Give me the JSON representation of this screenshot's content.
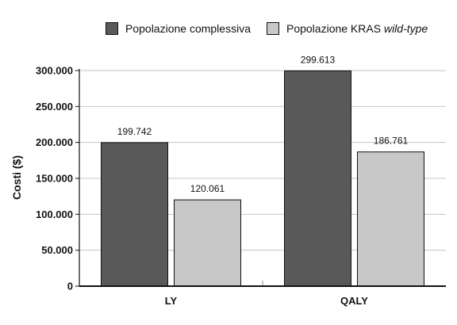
{
  "chart_data": {
    "type": "bar",
    "title": "",
    "xlabel": "",
    "ylabel": "Costi ($)",
    "categories": [
      "LY",
      "QALY"
    ],
    "ylim": [
      0,
      300000
    ],
    "yticks": [
      0,
      50000,
      100000,
      150000,
      200000,
      250000,
      300000
    ],
    "ytick_labels": [
      "0",
      "50.000",
      "100.000",
      "150.000",
      "200.000",
      "250.000",
      "300.000"
    ],
    "grid": true,
    "legend_position": "top-right",
    "series": [
      {
        "name": "Popolazione complessiva",
        "color": "#595959",
        "values": [
          199742,
          299613
        ],
        "labels": [
          "199.742",
          "299.613"
        ]
      },
      {
        "name": "Popolazione KRAS wild-type",
        "name_prefix": "Popolazione KRAS ",
        "name_emphasis": "wild-type",
        "color": "#c8c8c8",
        "values": [
          120061,
          186761
        ],
        "labels": [
          "120.061",
          "186.761"
        ]
      }
    ]
  }
}
